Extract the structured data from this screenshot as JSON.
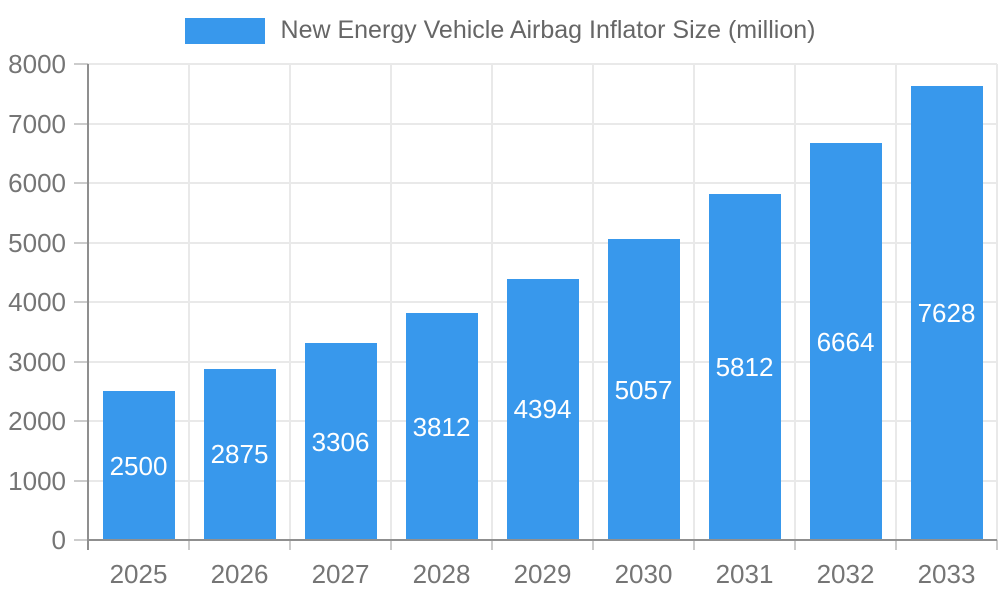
{
  "chart_data": {
    "type": "bar",
    "title": "New Energy Vehicle Airbag Inflator Size (million)",
    "legend": {
      "label": "New Energy Vehicle Airbag Inflator Size (million)",
      "position": "top"
    },
    "categories": [
      "2025",
      "2026",
      "2027",
      "2028",
      "2029",
      "2030",
      "2031",
      "2032",
      "2033"
    ],
    "series": [
      {
        "name": "New Energy Vehicle Airbag Inflator Size (million)",
        "values": [
          2500,
          2875,
          3306,
          3812,
          4394,
          5057,
          5812,
          6664,
          7628
        ]
      }
    ],
    "value_labels_shown": true,
    "value_label_position": "center-inside-bar",
    "xlabel": "",
    "ylabel": "",
    "ylim": [
      0,
      8000
    ],
    "ytick_step": 1000,
    "yticks": [
      0,
      1000,
      2000,
      3000,
      4000,
      5000,
      6000,
      7000,
      8000
    ],
    "grid": true,
    "legend_swatch_icon": "blue-rect-swatch",
    "colors": {
      "bar": "#3898ec",
      "grid": "#e9e9e9",
      "axis_line": "#8f8f8f",
      "tick_mark": "#cccccc",
      "tick_text": "#757575",
      "legend_text": "#666666",
      "value_label_text": "#ffffff",
      "background": "#ffffff"
    }
  }
}
